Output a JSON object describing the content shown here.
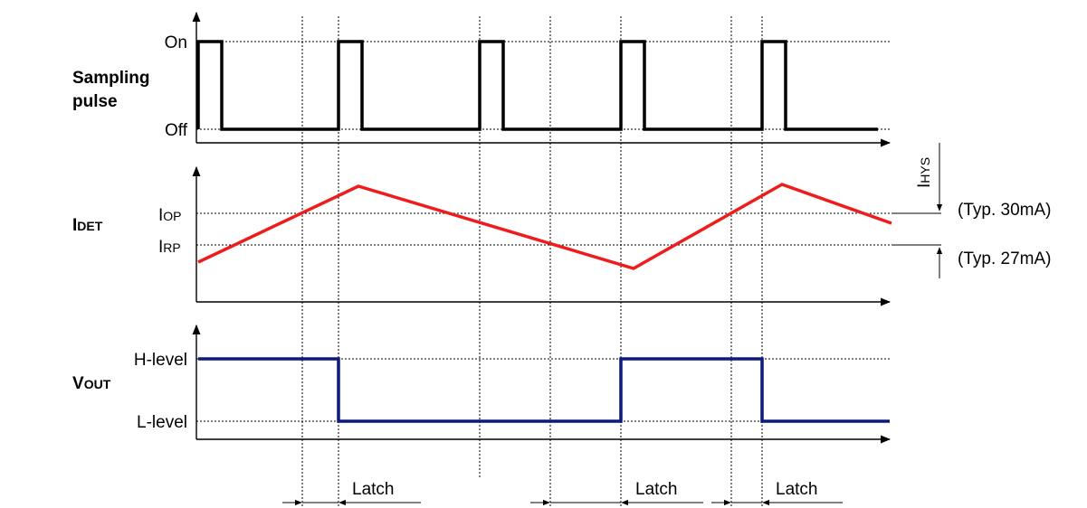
{
  "signals": {
    "sampling": {
      "label_line1": "Sampling",
      "label_line2": "pulse",
      "high": "On",
      "low": "Off",
      "color": "#000000"
    },
    "idet": {
      "label_main": "I",
      "label_sub": "DET",
      "iop_main": "I",
      "iop_sub": "OP",
      "irp_main": "I",
      "irp_sub": "RP",
      "color": "#ee1c1c"
    },
    "vout": {
      "label_main": "V",
      "label_sub": "OUT",
      "high": "H-level",
      "low": "L-level",
      "color": "#0d1a7a"
    }
  },
  "hysteresis": {
    "label_main": "I",
    "label_sub": "HYS",
    "iop_typ": "(Typ. 30mA)",
    "irp_typ": "(Typ. 27mA)"
  },
  "latch": {
    "label": "Latch",
    "count": 3
  }
}
